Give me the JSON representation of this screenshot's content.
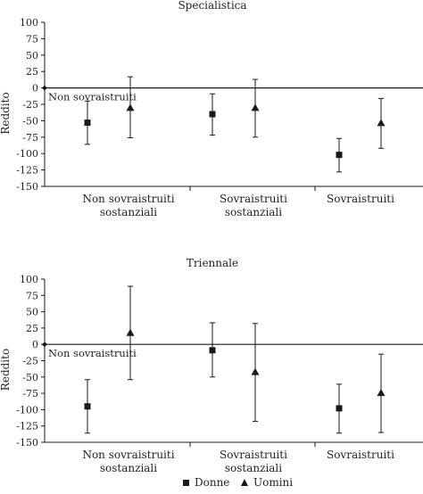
{
  "chart_data": [
    {
      "type": "scatter",
      "title": "Specialistica",
      "ylabel": "Reddito",
      "xlabel": "",
      "ylim": [
        -150,
        100
      ],
      "yticks": [
        100,
        75,
        50,
        25,
        0,
        -25,
        -50,
        -75,
        -100,
        -125,
        -150
      ],
      "categories": [
        "Non sovraistruiti\nsostanziali",
        "Sovraistruiti\nsostanziali",
        "Sovraistruiti"
      ],
      "reference_line": {
        "value": 0,
        "label": "Non sovraistruiti"
      },
      "series": [
        {
          "name": "Donne",
          "marker": "square",
          "points": [
            {
              "value": -53,
              "low": -86,
              "high": -20
            },
            {
              "value": -40,
              "low": -72,
              "high": -9
            },
            {
              "value": -102,
              "low": -128,
              "high": -77
            }
          ]
        },
        {
          "name": "Uomini",
          "marker": "triangle",
          "points": [
            {
              "value": -31,
              "low": -76,
              "high": 17
            },
            {
              "value": -31,
              "low": -75,
              "high": 13
            },
            {
              "value": -54,
              "low": -92,
              "high": -16
            }
          ]
        }
      ]
    },
    {
      "type": "scatter",
      "title": "Triennale",
      "ylabel": "Reddito",
      "xlabel": "",
      "ylim": [
        -150,
        100
      ],
      "yticks": [
        100,
        75,
        50,
        25,
        0,
        -25,
        -50,
        -75,
        -100,
        -125,
        -150
      ],
      "categories": [
        "Non sovraistruiti\nsostanziali",
        "Sovraistruiti\nsostanziali",
        "Sovraistruiti"
      ],
      "reference_line": {
        "value": 0,
        "label": "Non sovraistruiti"
      },
      "series": [
        {
          "name": "Donne",
          "marker": "square",
          "points": [
            {
              "value": -95,
              "low": -136,
              "high": -54
            },
            {
              "value": -9,
              "low": -50,
              "high": 33
            },
            {
              "value": -98,
              "low": -136,
              "high": -61
            }
          ]
        },
        {
          "name": "Uomini",
          "marker": "triangle",
          "points": [
            {
              "value": 17,
              "low": -54,
              "high": 89
            },
            {
              "value": -43,
              "low": -118,
              "high": 32
            },
            {
              "value": -75,
              "low": -135,
              "high": -15
            }
          ]
        }
      ]
    }
  ],
  "legend": {
    "position": "bottom",
    "items": [
      {
        "label": "Donne",
        "marker": "square"
      },
      {
        "label": "Uomini",
        "marker": "triangle"
      }
    ]
  },
  "colors": {
    "ink": "#1a1a1a"
  }
}
